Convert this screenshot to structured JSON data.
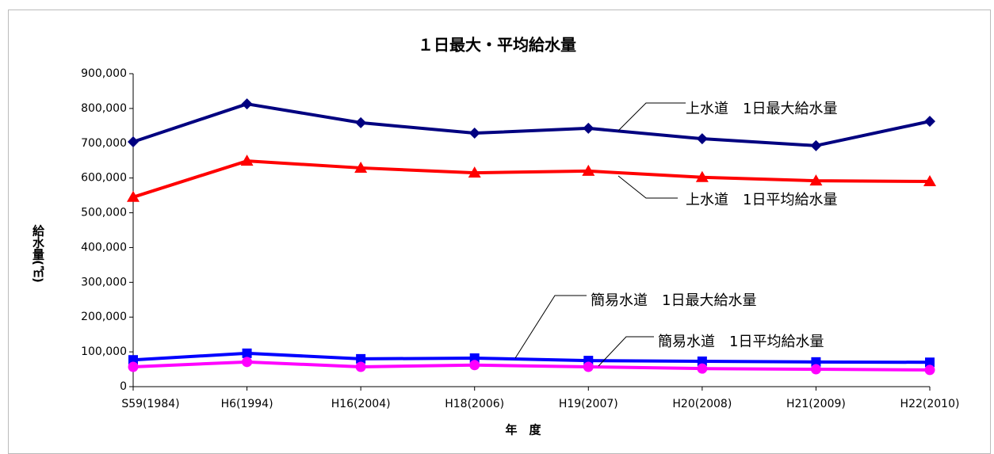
{
  "chart_data": {
    "type": "line",
    "title": "１日最大・平均給水量",
    "x_label": "年　度",
    "y_label": "給水量(㎥)",
    "categories": [
      "S59(1984)",
      "H6(1994)",
      "H16(2004)",
      "H18(2006)",
      "H19(2007)",
      "H20(2008)",
      "H21(2009)",
      "H22(2010)"
    ],
    "series": [
      {
        "name": "上水道　1日最大給水量",
        "color": "#000080",
        "marker": "diamond",
        "values": [
          704000,
          813000,
          759000,
          729000,
          743000,
          713000,
          693000,
          763000
        ]
      },
      {
        "name": "上水道　1日平均給水量",
        "color": "#ff0000",
        "marker": "triangle",
        "values": [
          545000,
          649000,
          629000,
          615000,
          620000,
          602000,
          592000,
          590000
        ]
      },
      {
        "name": "簡易水道　1日最大給水量",
        "color": "#0000ff",
        "marker": "square",
        "values": [
          77000,
          96000,
          80000,
          82000,
          75000,
          73000,
          71000,
          70000
        ]
      },
      {
        "name": "簡易水道　1日平均給水量",
        "color": "#ff00ff",
        "marker": "circle",
        "values": [
          57000,
          71000,
          57000,
          62000,
          57000,
          52000,
          50000,
          48000
        ]
      }
    ],
    "ylim": [
      0,
      900000
    ],
    "yticks": [
      0,
      {
        "value": 100000,
        "label": "100,000"
      },
      {
        "value": 200000,
        "label": "200,000"
      },
      {
        "value": 300000,
        "label": "300,000"
      },
      {
        "value": 400000,
        "label": "400,000"
      },
      {
        "value": 500000,
        "label": "500,000"
      },
      {
        "value": 600000,
        "label": "600,000"
      },
      {
        "value": 700000,
        "label": "700,000"
      },
      {
        "value": 800000,
        "label": "800,000"
      },
      {
        "value": 900000,
        "label": "900,000"
      }
    ],
    "grid": false
  }
}
